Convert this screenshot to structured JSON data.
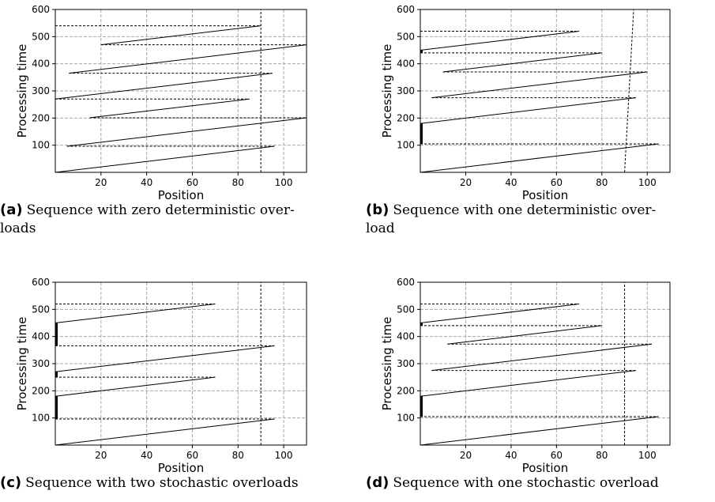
{
  "chart_data": [
    {
      "type": "line",
      "caption_tag": "(a)",
      "caption_lines": [
        "Sequence with zero deterministic over-",
        "loads"
      ],
      "xlabel": "Position",
      "ylabel": "Processing time",
      "xlim": [
        0,
        110
      ],
      "ylim": [
        0,
        600
      ],
      "xticks": [
        20,
        40,
        60,
        80,
        100
      ],
      "yticks": [
        100,
        200,
        300,
        400,
        500,
        600
      ],
      "grid": true,
      "threshold_x": [
        [
          90,
          0
        ],
        [
          90,
          600
        ]
      ],
      "solid_segments": [
        [
          [
            0,
            0
          ],
          [
            96,
            96
          ]
        ],
        [
          [
            5,
            96
          ],
          [
            110,
            201
          ]
        ],
        [
          [
            15,
            201
          ],
          [
            85,
            270
          ]
        ],
        [
          [
            0,
            270
          ],
          [
            95,
            365
          ]
        ],
        [
          [
            6,
            365
          ],
          [
            110,
            470
          ]
        ],
        [
          [
            20,
            470
          ],
          [
            90,
            540
          ]
        ]
      ],
      "dashed_segments": [
        [
          [
            5,
            96
          ],
          [
            96,
            96
          ]
        ],
        [
          [
            15,
            201
          ],
          [
            110,
            201
          ]
        ],
        [
          [
            0,
            270
          ],
          [
            85,
            270
          ]
        ],
        [
          [
            6,
            365
          ],
          [
            95,
            365
          ]
        ],
        [
          [
            20,
            470
          ],
          [
            110,
            470
          ]
        ],
        [
          [
            0,
            540
          ],
          [
            90,
            540
          ]
        ]
      ],
      "bold_segments": []
    },
    {
      "type": "line",
      "caption_tag": "(b)",
      "caption_lines": [
        "Sequence with one deterministic over-",
        "load"
      ],
      "xlabel": "Position",
      "ylabel": "Processing time",
      "xlim": [
        0,
        110
      ],
      "ylim": [
        0,
        600
      ],
      "xticks": [
        20,
        40,
        60,
        80,
        100
      ],
      "yticks": [
        100,
        200,
        300,
        400,
        500,
        600
      ],
      "grid": true,
      "threshold_x": [
        [
          90,
          0
        ],
        [
          94,
          600
        ]
      ],
      "solid_segments": [
        [
          [
            0,
            0
          ],
          [
            105,
            105
          ]
        ],
        [
          [
            0,
            180
          ],
          [
            95,
            275
          ]
        ],
        [
          [
            5,
            275
          ],
          [
            100,
            370
          ]
        ],
        [
          [
            10,
            370
          ],
          [
            80,
            440
          ]
        ],
        [
          [
            0,
            450
          ],
          [
            70,
            520
          ]
        ]
      ],
      "dashed_segments": [
        [
          [
            0,
            105
          ],
          [
            105,
            105
          ]
        ],
        [
          [
            5,
            275
          ],
          [
            95,
            275
          ]
        ],
        [
          [
            10,
            370
          ],
          [
            100,
            370
          ]
        ],
        [
          [
            0,
            440
          ],
          [
            80,
            440
          ]
        ],
        [
          [
            0,
            520
          ],
          [
            70,
            520
          ]
        ]
      ],
      "bold_segments": [
        [
          [
            0,
            105
          ],
          [
            0,
            180
          ]
        ],
        [
          [
            0,
            440
          ],
          [
            0,
            450
          ]
        ]
      ]
    },
    {
      "type": "line",
      "caption_tag": "(c)",
      "caption_lines": [
        "Sequence with two stochastic overloads"
      ],
      "xlabel": "Position",
      "ylabel": "Processing time",
      "xlim": [
        0,
        110
      ],
      "ylim": [
        0,
        600
      ],
      "xticks": [
        20,
        40,
        60,
        80,
        100
      ],
      "yticks": [
        100,
        200,
        300,
        400,
        500,
        600
      ],
      "grid": true,
      "threshold_x": [
        [
          90,
          0
        ],
        [
          90,
          600
        ]
      ],
      "solid_segments": [
        [
          [
            0,
            0
          ],
          [
            96,
            96
          ]
        ],
        [
          [
            0,
            180
          ],
          [
            70,
            250
          ]
        ],
        [
          [
            0,
            270
          ],
          [
            96,
            366
          ]
        ],
        [
          [
            0,
            450
          ],
          [
            70,
            520
          ]
        ]
      ],
      "dashed_segments": [
        [
          [
            0,
            96
          ],
          [
            96,
            96
          ]
        ],
        [
          [
            0,
            250
          ],
          [
            70,
            250
          ]
        ],
        [
          [
            0,
            366
          ],
          [
            96,
            366
          ]
        ],
        [
          [
            0,
            520
          ],
          [
            70,
            520
          ]
        ]
      ],
      "bold_segments": [
        [
          [
            0,
            96
          ],
          [
            0,
            180
          ]
        ],
        [
          [
            0,
            250
          ],
          [
            0,
            270
          ]
        ],
        [
          [
            0,
            366
          ],
          [
            0,
            450
          ]
        ]
      ]
    },
    {
      "type": "line",
      "caption_tag": "(d)",
      "caption_lines": [
        "Sequence with one stochastic overload"
      ],
      "xlabel": "Position",
      "ylabel": "Processing time",
      "xlim": [
        0,
        110
      ],
      "ylim": [
        0,
        600
      ],
      "xticks": [
        20,
        40,
        60,
        80,
        100
      ],
      "yticks": [
        100,
        200,
        300,
        400,
        500,
        600
      ],
      "grid": true,
      "threshold_x": [
        [
          90,
          0
        ],
        [
          90,
          600
        ]
      ],
      "solid_segments": [
        [
          [
            0,
            0
          ],
          [
            105,
            105
          ]
        ],
        [
          [
            0,
            180
          ],
          [
            95,
            275
          ]
        ],
        [
          [
            5,
            275
          ],
          [
            102,
            372
          ]
        ],
        [
          [
            12,
            372
          ],
          [
            80,
            440
          ]
        ],
        [
          [
            0,
            450
          ],
          [
            70,
            520
          ]
        ]
      ],
      "dashed_segments": [
        [
          [
            0,
            105
          ],
          [
            105,
            105
          ]
        ],
        [
          [
            5,
            275
          ],
          [
            95,
            275
          ]
        ],
        [
          [
            12,
            372
          ],
          [
            102,
            372
          ]
        ],
        [
          [
            0,
            440
          ],
          [
            80,
            440
          ]
        ],
        [
          [
            0,
            520
          ],
          [
            70,
            520
          ]
        ]
      ],
      "bold_segments": [
        [
          [
            0,
            105
          ],
          [
            0,
            180
          ]
        ],
        [
          [
            0,
            440
          ],
          [
            0,
            450
          ]
        ]
      ]
    }
  ]
}
